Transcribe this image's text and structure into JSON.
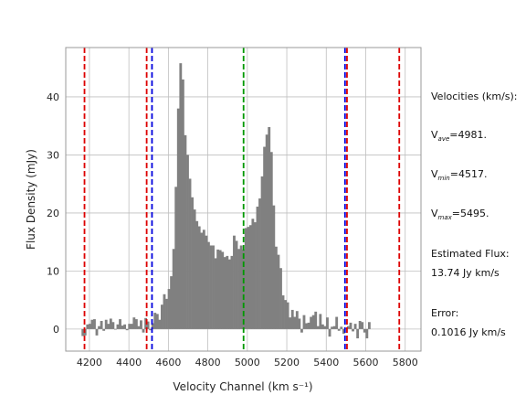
{
  "chart_data": {
    "type": "bar",
    "xlabel": "Velocity Channel (km s⁻¹)",
    "ylabel": "Flux Density (mJy)",
    "xlim": [
      4080,
      5880
    ],
    "ylim": [
      -3.8,
      48.5
    ],
    "xticks": [
      4200,
      4400,
      4600,
      4800,
      5000,
      5200,
      5400,
      5600,
      5800
    ],
    "yticks": [
      0,
      10,
      20,
      30,
      40
    ],
    "grid": true,
    "bin_width": 11.8,
    "x_start": 4160,
    "values": [
      -1.2,
      -1.1,
      0.8,
      0.9,
      1.6,
      1.7,
      -1.1,
      0.5,
      1.4,
      -0.3,
      1.6,
      0.9,
      1.8,
      1.2,
      -0.1,
      0.8,
      1.7,
      0.6,
      0.8,
      -0.2,
      0.9,
      0.9,
      2.0,
      1.7,
      0.5,
      1.5,
      -0.6,
      1.9,
      1.3,
      -0.2,
      1.0,
      2.8,
      2.6,
      1.6,
      4.2,
      6.0,
      5.2,
      6.9,
      9.1,
      13.8,
      24.5,
      38.0,
      45.8,
      43.0,
      33.4,
      30.0,
      25.9,
      22.7,
      20.6,
      18.6,
      17.7,
      16.6,
      17.1,
      16.1,
      15.0,
      14.4,
      14.4,
      12.2,
      13.7,
      13.6,
      13.3,
      12.4,
      12.6,
      12.0,
      12.6,
      16.1,
      15.2,
      13.8,
      14.4,
      13.7,
      17.4,
      17.6,
      17.9,
      19.0,
      18.4,
      21.1,
      22.5,
      26.3,
      31.4,
      33.5,
      34.8,
      30.5,
      21.3,
      14.2,
      12.8,
      10.5,
      5.8,
      5.0,
      4.6,
      2.0,
      3.3,
      2.1,
      3.1,
      1.8,
      -0.6,
      2.4,
      1.0,
      1.1,
      2.1,
      2.4,
      3.0,
      0.5,
      2.6,
      0.8,
      0.5,
      2.0,
      -1.3,
      0.4,
      0.5,
      2.1,
      -0.3,
      0.4,
      -0.8,
      0.1,
      0.5,
      1.1,
      -0.4,
      0.9,
      -1.6,
      1.4,
      1.2,
      -0.6,
      -1.6,
      1.2
    ],
    "bar_color": "#808080",
    "vlines": [
      {
        "x": 4175,
        "color": "#dd0000",
        "style": "dashed"
      },
      {
        "x": 4490,
        "color": "#dd0000",
        "style": "dashed"
      },
      {
        "x": 4517,
        "color": "#0000dd",
        "style": "dashed"
      },
      {
        "x": 4981,
        "color": "#009900",
        "style": "dashed"
      },
      {
        "x": 5495,
        "color": "#0000dd",
        "style": "dashed"
      },
      {
        "x": 5505,
        "color": "#dd0000",
        "style": "dashed"
      },
      {
        "x": 5770,
        "color": "#dd0000",
        "style": "dashed"
      }
    ]
  },
  "side_panel": {
    "heading": "Velocities (km/s):",
    "vave_prefix": "V",
    "vave_sub": "ave",
    "vave_value": "=4981.",
    "vmin_prefix": "V",
    "vmin_sub": "min",
    "vmin_value": "=4517.",
    "vmax_prefix": "V",
    "vmax_sub": "max",
    "vmax_value": "=5495.",
    "flux_label": "Estimated Flux:",
    "flux_value": "13.74 Jy km/s",
    "error_label": "Error:",
    "error_value": "0.1016 Jy km/s"
  }
}
